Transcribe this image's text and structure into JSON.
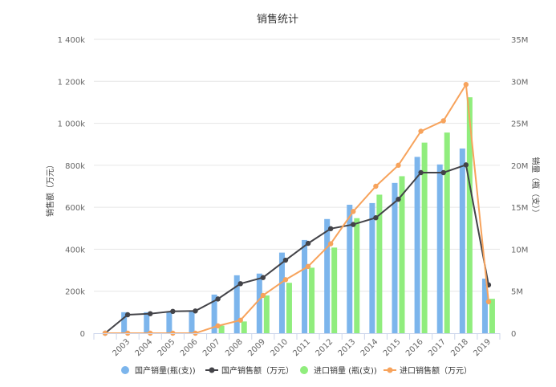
{
  "chart_data": {
    "type": "bar",
    "title": "销售统计",
    "categories": [
      "",
      "2003",
      "2004",
      "2005",
      "2006",
      "2007",
      "2008",
      "2009",
      "2010",
      "2011",
      "2012",
      "2013",
      "2014",
      "2015",
      "2016",
      "2017",
      "2018",
      "2019"
    ],
    "y_left": {
      "label": "销售额（万元）",
      "ylim": [
        0,
        1400000
      ],
      "ticks": [
        0,
        200000,
        400000,
        600000,
        800000,
        1000000,
        1200000,
        1400000
      ],
      "tick_labels": [
        "0",
        "200k",
        "400k",
        "600k",
        "800k",
        "1 000k",
        "1 200k",
        "1 400k"
      ]
    },
    "y_right": {
      "label": "销量（瓶（支））",
      "ylim": [
        0,
        35000000
      ],
      "ticks": [
        0,
        5000000,
        10000000,
        15000000,
        20000000,
        25000000,
        30000000,
        35000000
      ],
      "tick_labels": [
        "0",
        "5M",
        "10M",
        "15M",
        "20M",
        "25M",
        "30M",
        "35M"
      ]
    },
    "series": [
      {
        "name": "国产销量(瓶(支))",
        "kind": "bar",
        "axis": "right",
        "color": "#7cb5ec",
        "values": [
          0,
          2500000,
          2500000,
          2600000,
          2700000,
          4600000,
          6900000,
          7100000,
          9600000,
          11100000,
          13600000,
          15300000,
          15500000,
          17900000,
          21000000,
          20100000,
          22000000,
          6500000
        ]
      },
      {
        "name": "国产销售额（万元）",
        "kind": "line",
        "axis": "left",
        "color": "#434348",
        "values": [
          0,
          88000,
          93000,
          104000,
          106000,
          163000,
          236000,
          265000,
          348000,
          428000,
          498000,
          518000,
          550000,
          638000,
          765000,
          765000,
          802000,
          230000
        ]
      },
      {
        "name": "进口销量 (瓶(支))",
        "kind": "bar",
        "axis": "right",
        "color": "#90ed7d",
        "values": [
          0,
          0,
          0,
          0,
          0,
          900000,
          1400000,
          4500000,
          6000000,
          7800000,
          10200000,
          13700000,
          16500000,
          18700000,
          22700000,
          23900000,
          28100000,
          4100000
        ]
      },
      {
        "name": "进口销售额（万元）",
        "kind": "line",
        "axis": "left",
        "color": "#f7a35c",
        "values": [
          0,
          0,
          0,
          0,
          0,
          35000,
          62000,
          180000,
          255000,
          318000,
          426000,
          580000,
          700000,
          800000,
          962000,
          1012000,
          1185000,
          150000
        ]
      }
    ],
    "grid": true,
    "legend_position": "bottom"
  }
}
